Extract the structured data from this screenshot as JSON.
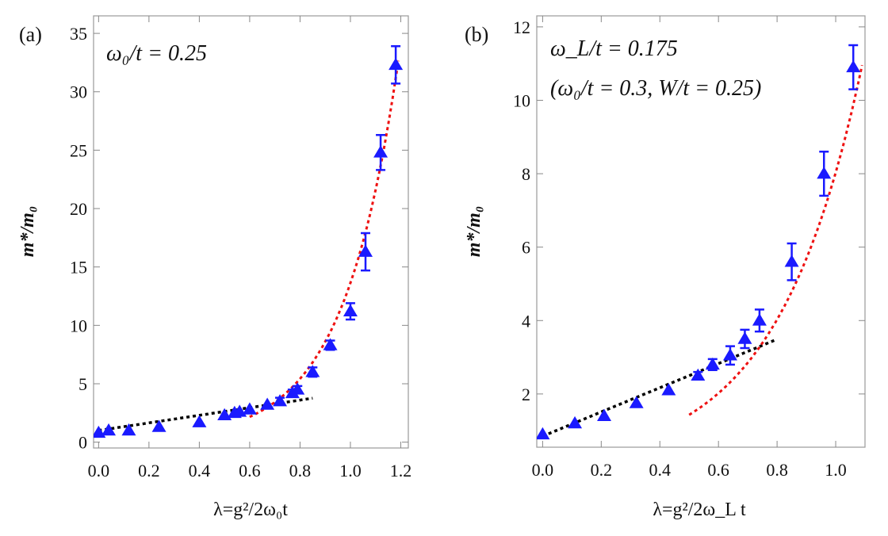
{
  "chart_data": [
    {
      "type": "scatter",
      "panel_label": "(a)",
      "annotations": [
        "ω₀/t = 0.25"
      ],
      "xlabel": "λ=g²/2ω₀t",
      "ylabel": "m*/m₀",
      "xlim": [
        -0.02,
        1.23
      ],
      "ylim": [
        -0.5,
        36.5
      ],
      "xticks": [
        0.0,
        0.2,
        0.4,
        0.6,
        0.8,
        1.0,
        1.2
      ],
      "xtick_labels": [
        "0.0",
        "0.2",
        "0.4",
        "0.6",
        "0.8",
        "1.0",
        "1.2"
      ],
      "yticks": [
        0,
        5,
        10,
        15,
        20,
        25,
        30,
        35
      ],
      "ytick_labels": [
        "0",
        "5",
        "10",
        "15",
        "20",
        "25",
        "30",
        "35"
      ],
      "marker_color": "#1a1aff",
      "series": [
        {
          "name": "data",
          "x": [
            0.0,
            0.04,
            0.12,
            0.24,
            0.4,
            0.5,
            0.54,
            0.56,
            0.6,
            0.67,
            0.72,
            0.77,
            0.79,
            0.85,
            0.92,
            1.0,
            1.06,
            1.12,
            1.18
          ],
          "y": [
            0.8,
            1.0,
            1.0,
            1.3,
            1.7,
            2.3,
            2.5,
            2.6,
            2.8,
            3.2,
            3.5,
            4.2,
            4.5,
            6.0,
            8.3,
            11.2,
            16.3,
            24.8,
            32.3
          ],
          "err": [
            0.15,
            0.15,
            0.15,
            0.15,
            0.15,
            0.2,
            0.2,
            0.2,
            0.2,
            0.2,
            0.3,
            0.3,
            0.3,
            0.4,
            0.4,
            0.7,
            1.6,
            1.5,
            1.6
          ]
        }
      ],
      "fit_lines": [
        {
          "name": "linear fit",
          "color": "#000000",
          "x_range": [
            0.0,
            0.85
          ],
          "coeffs": [
            1.0,
            3.25
          ],
          "form": "linear"
        },
        {
          "name": "exponential fit",
          "color": "#ee1111",
          "x_range": [
            0.6,
            1.19
          ],
          "coeffs": [
            0.137,
            4.6
          ],
          "form": "exponential"
        }
      ]
    },
    {
      "type": "scatter",
      "panel_label": "(b)",
      "annotations": [
        "ω_L/t = 0.175",
        "(ω₀/t = 0.3, W/t = 0.25)"
      ],
      "xlabel": "λ=g²/2ω_L t",
      "ylabel": "m*/m₀",
      "xlim": [
        -0.02,
        1.1
      ],
      "ylim": [
        0.55,
        12.3
      ],
      "xticks": [
        0.0,
        0.2,
        0.4,
        0.6,
        0.8,
        1.0
      ],
      "xtick_labels": [
        "0.0",
        "0.2",
        "0.4",
        "0.6",
        "0.8",
        "1.0"
      ],
      "yticks": [
        2,
        4,
        6,
        8,
        10,
        12
      ],
      "ytick_labels": [
        "2",
        "4",
        "6",
        "8",
        "10",
        "12"
      ],
      "marker_color": "#1a1aff",
      "series": [
        {
          "name": "data",
          "x": [
            0.0,
            0.11,
            0.21,
            0.32,
            0.43,
            0.53,
            0.58,
            0.64,
            0.69,
            0.74,
            0.85,
            0.96,
            1.06
          ],
          "y": [
            0.9,
            1.2,
            1.4,
            1.75,
            2.1,
            2.5,
            2.8,
            3.05,
            3.5,
            4.0,
            5.6,
            8.0,
            10.9
          ],
          "err": [
            0.05,
            0.05,
            0.05,
            0.05,
            0.08,
            0.1,
            0.15,
            0.25,
            0.25,
            0.3,
            0.5,
            0.6,
            0.6
          ]
        }
      ],
      "fit_lines": [
        {
          "name": "linear fit",
          "color": "#000000",
          "x_range": [
            0.0,
            0.79
          ],
          "coeffs": [
            0.85,
            3.3
          ],
          "form": "linear"
        },
        {
          "name": "exponential fit",
          "color": "#ee1111",
          "x_range": [
            0.5,
            1.09
          ],
          "coeffs": [
            0.255,
            3.45
          ],
          "form": "exponential"
        }
      ]
    }
  ]
}
